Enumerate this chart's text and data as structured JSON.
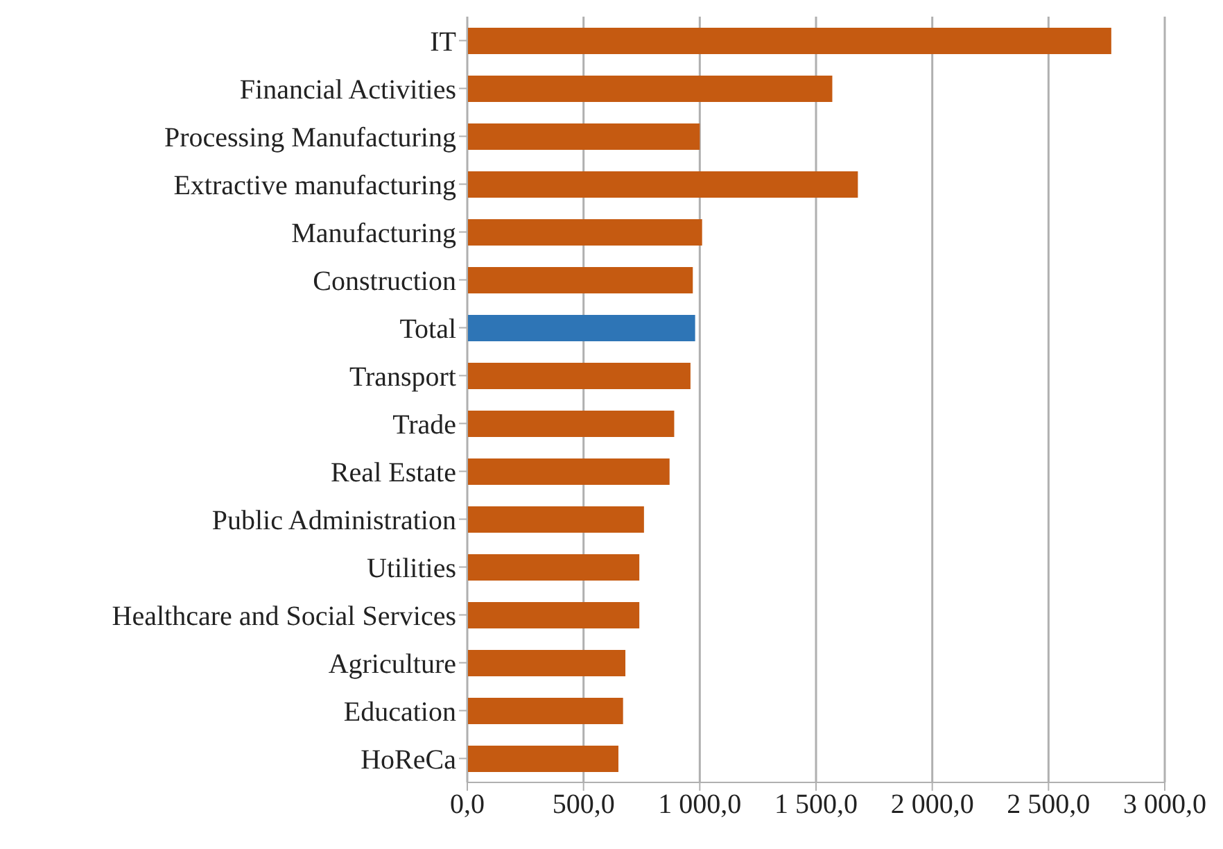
{
  "chart_data": {
    "type": "bar",
    "orientation": "horizontal",
    "categories": [
      "IT",
      "Financial Activities",
      "Processing Manufacturing",
      "Extractive manufacturing",
      "Manufacturing",
      "Construction",
      "Total",
      "Transport",
      "Trade",
      "Real Estate",
      "Public Administration",
      "Utilities",
      "Healthcare and Social Services",
      "Agriculture",
      "Education",
      "HoReCa"
    ],
    "values": [
      2770,
      1570,
      1000,
      1680,
      1010,
      970,
      980,
      960,
      890,
      870,
      760,
      740,
      740,
      680,
      670,
      650
    ],
    "colors": [
      "#c55a11",
      "#c55a11",
      "#c55a11",
      "#c55a11",
      "#c55a11",
      "#c55a11",
      "#2e75b6",
      "#c55a11",
      "#c55a11",
      "#c55a11",
      "#c55a11",
      "#c55a11",
      "#c55a11",
      "#c55a11",
      "#c55a11",
      "#c55a11"
    ],
    "xlim": [
      0,
      3000
    ],
    "xticks": [
      {
        "value": 0,
        "label": "0,0"
      },
      {
        "value": 500,
        "label": "500,0"
      },
      {
        "value": 1000,
        "label": "1 000,0"
      },
      {
        "value": 1500,
        "label": "1 500,0"
      },
      {
        "value": 2000,
        "label": "2 000,0"
      },
      {
        "value": 2500,
        "label": "2 500,0"
      },
      {
        "value": 3000,
        "label": "3 000,0"
      }
    ],
    "grid": "x",
    "legend": false
  }
}
